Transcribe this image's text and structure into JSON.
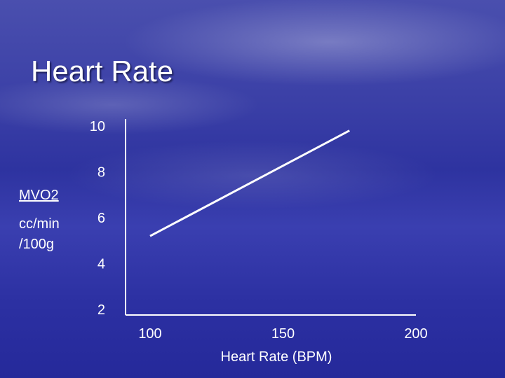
{
  "slide": {
    "title": "Heart Rate"
  },
  "chart_data": {
    "type": "line",
    "title": "",
    "xlabel": "Heart Rate (BPM)",
    "ylabel_lines": [
      "MVO2",
      "cc/min",
      "/100g"
    ],
    "y_ticks": [
      10,
      8,
      6,
      4,
      2
    ],
    "x_ticks": [
      100,
      150,
      200
    ],
    "xlim": [
      100,
      200
    ],
    "ylim": [
      2,
      10
    ],
    "grid": false,
    "axis_color": "#ffffff",
    "series": [
      {
        "x": [
          100,
          175
        ],
        "y": [
          5.2,
          9.8
        ],
        "color": "#ffffff"
      }
    ]
  }
}
